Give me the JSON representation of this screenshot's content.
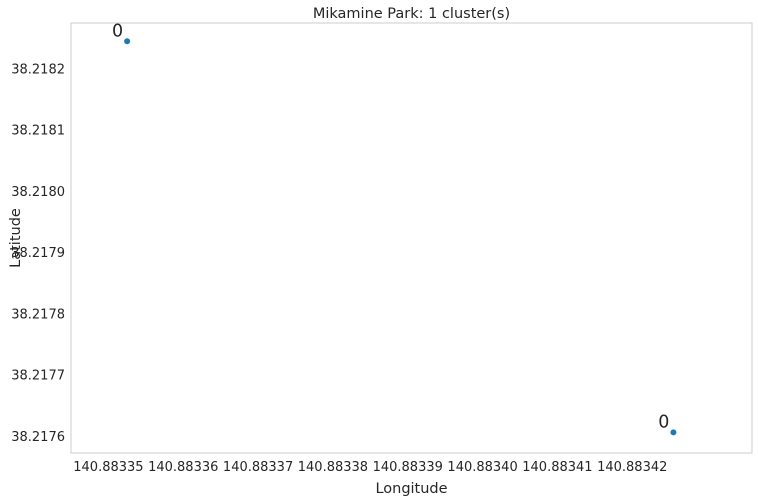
{
  "chart_data": {
    "type": "scatter",
    "title": "Mikamine Park: 1 cluster(s)",
    "xlabel": "Longitude",
    "ylabel": "Latitude",
    "xlim": [
      140.883345,
      140.883436
    ],
    "ylim": [
      38.217573,
      38.218275
    ],
    "xticks": [
      140.88335,
      140.88336,
      140.88337,
      140.88338,
      140.88339,
      140.8834,
      140.88341,
      140.88342
    ],
    "xtick_labels": [
      "140.88335",
      "140.88336",
      "140.88337",
      "140.88338",
      "140.88339",
      "140.88340",
      "140.88341",
      "140.88342"
    ],
    "yticks": [
      38.2176,
      38.2177,
      38.2178,
      38.2179,
      38.218,
      38.2181,
      38.2182
    ],
    "ytick_labels": [
      "38.2176",
      "38.2177",
      "38.2178",
      "38.2179",
      "38.2180",
      "38.2181",
      "38.2182"
    ],
    "grid": false,
    "point_color": "#1f77b4",
    "points": [
      {
        "x": 140.8833525,
        "y": 38.2182452,
        "label": "0"
      },
      {
        "x": 140.8834255,
        "y": 38.2176066,
        "label": "0"
      }
    ]
  }
}
